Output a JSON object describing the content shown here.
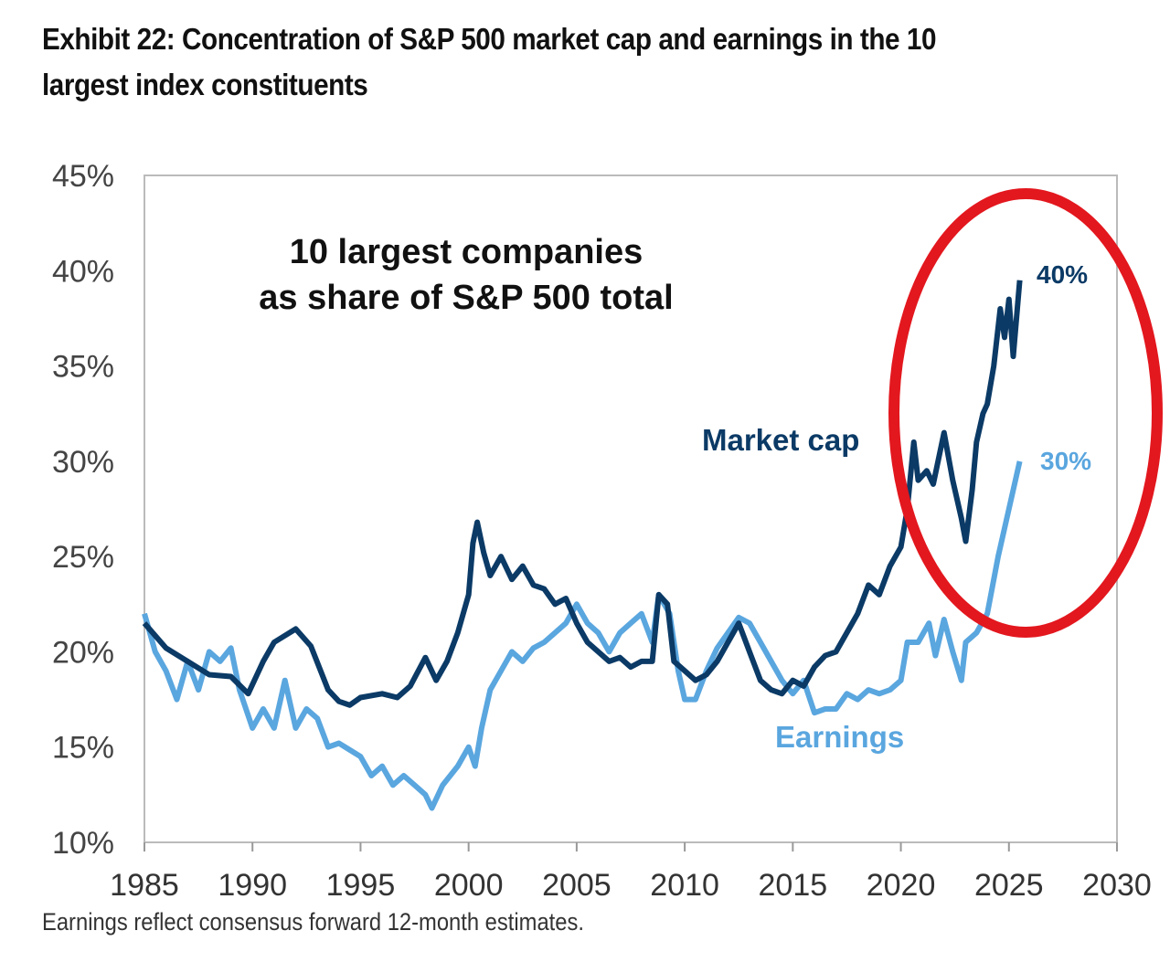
{
  "title": "Exhibit 22: Concentration of S&P 500 market cap and earnings in the 10 largest index constituents",
  "footnote": "Earnings reflect consensus forward 12-month estimates.",
  "chart_data": {
    "type": "line",
    "annotation": [
      "10 largest companies",
      "as share of S&P 500 total"
    ],
    "xlim": [
      1985,
      2030
    ],
    "ylim": [
      10,
      45
    ],
    "x_ticks": [
      "1985",
      "1990",
      "1995",
      "2000",
      "2005",
      "2010",
      "2015",
      "2020",
      "2025",
      "2030"
    ],
    "y_ticks": [
      "10%",
      "15%",
      "20%",
      "25%",
      "30%",
      "35%",
      "40%",
      "45%"
    ],
    "grid": false,
    "highlight": "red ellipse around 2020-2025",
    "colors": {
      "market_cap": "#0b3a66",
      "earnings": "#5aa6df",
      "highlight": "#e3171e"
    },
    "series": [
      {
        "name": "Market cap",
        "end_label": "40%",
        "x": [
          1985,
          1986,
          1987,
          1988,
          1989,
          1989.8,
          1990.5,
          1991,
          1992,
          1992.7,
          1993.5,
          1994,
          1994.5,
          1995,
          1996,
          1996.7,
          1997.3,
          1998,
          1998.5,
          1999,
          1999.5,
          2000,
          2000.2,
          2000.4,
          2000.7,
          2001,
          2001.5,
          2002,
          2002.5,
          2003,
          2003.5,
          2004,
          2004.5,
          2005,
          2005.5,
          2006,
          2006.5,
          2007,
          2007.5,
          2008,
          2008.5,
          2008.8,
          2009.2,
          2009.5,
          2010,
          2010.5,
          2011,
          2011.5,
          2012,
          2012.5,
          2013,
          2013.5,
          2014,
          2014.5,
          2015,
          2015.5,
          2016,
          2016.5,
          2017,
          2017.5,
          2018,
          2018.5,
          2019,
          2019.5,
          2020,
          2020.3,
          2020.6,
          2020.8,
          2021.2,
          2021.5,
          2022,
          2022.4,
          2022.8,
          2023,
          2023.3,
          2023.5,
          2023.8,
          2024,
          2024.3,
          2024.6,
          2024.8,
          2025,
          2025.2,
          2025.5
        ],
        "y": [
          21.5,
          20.2,
          19.5,
          18.8,
          18.7,
          17.8,
          19.5,
          20.5,
          21.2,
          20.3,
          18,
          17.4,
          17.2,
          17.6,
          17.8,
          17.6,
          18.2,
          19.7,
          18.5,
          19.5,
          21,
          23,
          25.7,
          26.8,
          25.2,
          24,
          25,
          23.8,
          24.5,
          23.5,
          23.3,
          22.5,
          22.8,
          21.5,
          20.5,
          20,
          19.5,
          19.7,
          19.2,
          19.5,
          19.5,
          23,
          22.5,
          19.5,
          19,
          18.5,
          18.8,
          19.5,
          20.5,
          21.5,
          20,
          18.5,
          18,
          17.8,
          18.5,
          18.2,
          19.2,
          19.8,
          20,
          21,
          22,
          23.5,
          23,
          24.5,
          25.5,
          27.5,
          31,
          29,
          29.5,
          28.8,
          31.5,
          29,
          27,
          25.8,
          28.5,
          31,
          32.5,
          33,
          35,
          38,
          36.5,
          38.5,
          35.5,
          39.5
        ]
      },
      {
        "name": "Earnings",
        "end_label": "30%",
        "x": [
          1985,
          1985.5,
          1986,
          1986.5,
          1987,
          1987.5,
          1988,
          1988.5,
          1989,
          1989.4,
          1990,
          1990.5,
          1991,
          1991.5,
          1992,
          1992.5,
          1993,
          1993.5,
          1994,
          1995,
          1995.5,
          1996,
          1996.5,
          1997,
          1997.5,
          1998,
          1998.3,
          1998.8,
          1999.5,
          2000,
          2000.3,
          2000.6,
          2001,
          2001.5,
          2002,
          2002.5,
          2003,
          2003.5,
          2004,
          2004.5,
          2005,
          2005.5,
          2006,
          2006.5,
          2007,
          2007.5,
          2008,
          2008.5,
          2008.8,
          2009.3,
          2009.7,
          2010,
          2010.5,
          2011,
          2011.5,
          2012,
          2012.5,
          2013,
          2013.5,
          2014,
          2014.5,
          2015,
          2015.5,
          2016,
          2016.5,
          2017,
          2017.5,
          2018,
          2018.5,
          2019,
          2019.5,
          2020,
          2020.3,
          2020.8,
          2021.3,
          2021.6,
          2022,
          2022.4,
          2022.8,
          2023,
          2023.5,
          2024,
          2024.5,
          2025,
          2025.5
        ],
        "y": [
          22,
          20,
          19,
          17.5,
          19.5,
          18,
          20,
          19.5,
          20.2,
          18,
          16,
          17,
          16,
          18.5,
          16,
          17,
          16.5,
          15,
          15.2,
          14.5,
          13.5,
          14,
          13,
          13.5,
          13,
          12.5,
          11.8,
          13,
          14,
          15,
          14,
          16,
          18,
          19,
          20,
          19.5,
          20.2,
          20.5,
          21,
          21.5,
          22.5,
          21.5,
          21,
          20,
          21,
          21.5,
          22,
          20.5,
          23,
          22,
          19,
          17.5,
          17.5,
          19,
          20.2,
          21,
          21.8,
          21.5,
          20.5,
          19.5,
          18.5,
          17.8,
          18.5,
          16.8,
          17,
          17,
          17.8,
          17.5,
          18,
          17.8,
          18,
          18.5,
          20.5,
          20.5,
          21.5,
          19.8,
          21.7,
          20,
          18.5,
          20.5,
          21,
          22,
          25,
          27.5,
          30
        ]
      }
    ]
  }
}
